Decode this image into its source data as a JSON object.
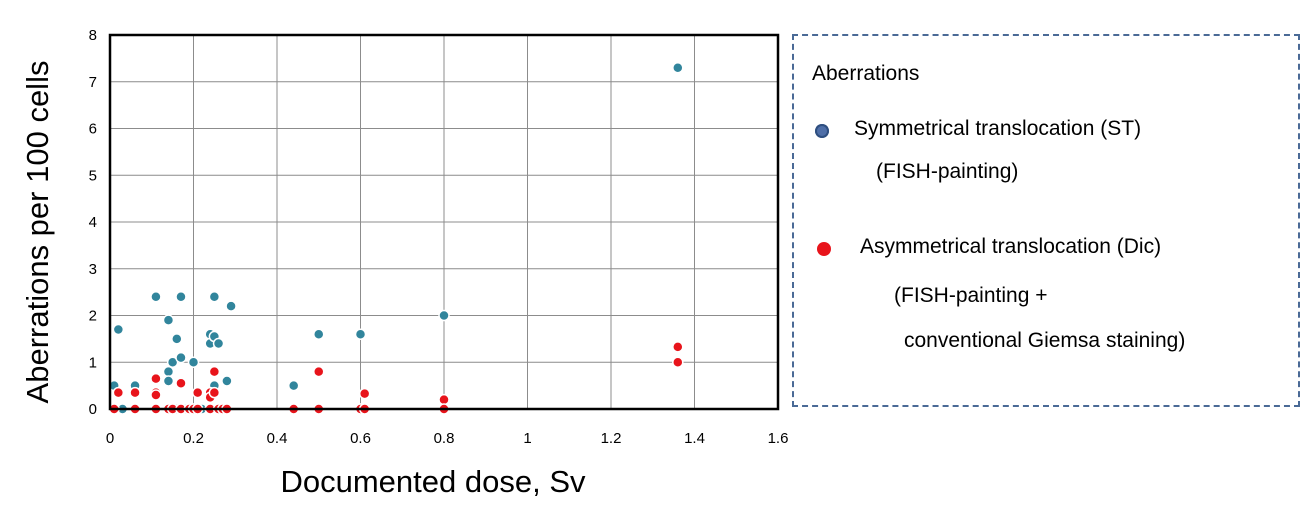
{
  "chart_data": {
    "type": "scatter",
    "xlabel": "Documented dose, Sv",
    "ylabel": "Aberrations per 100 cells",
    "xlim": [
      0,
      1.6
    ],
    "ylim": [
      0,
      8
    ],
    "x_ticks": [
      "0",
      "0.2",
      "0.4",
      "0.6",
      "0.8",
      "1",
      "1.2",
      "1.4",
      "1.6"
    ],
    "y_ticks": [
      "0",
      "1",
      "2",
      "3",
      "4",
      "5",
      "6",
      "7",
      "8"
    ],
    "grid": true,
    "legend_position": "right",
    "series": [
      {
        "name": "Symmetrical translocation (ST)",
        "color": "#31859c",
        "points": [
          [
            0.01,
            0.5
          ],
          [
            0.02,
            1.7
          ],
          [
            0.06,
            0.5
          ],
          [
            0.11,
            2.4
          ],
          [
            0.14,
            1.9
          ],
          [
            0.14,
            0.8
          ],
          [
            0.14,
            0.6
          ],
          [
            0.15,
            1.0
          ],
          [
            0.16,
            1.5
          ],
          [
            0.17,
            2.4
          ],
          [
            0.17,
            1.1
          ],
          [
            0.2,
            1.0
          ],
          [
            0.24,
            1.6
          ],
          [
            0.24,
            1.4
          ],
          [
            0.25,
            2.4
          ],
          [
            0.25,
            1.55
          ],
          [
            0.26,
            1.4
          ],
          [
            0.25,
            0.5
          ],
          [
            0.28,
            0.6
          ],
          [
            0.29,
            2.2
          ],
          [
            0.44,
            0.5
          ],
          [
            0.5,
            1.6
          ],
          [
            0.6,
            1.6
          ],
          [
            0.8,
            2.0
          ],
          [
            1.36,
            7.3
          ],
          [
            0.01,
            0.0
          ],
          [
            0.03,
            0.0
          ],
          [
            0.06,
            0.0
          ],
          [
            0.11,
            0.0
          ],
          [
            0.14,
            0.0
          ],
          [
            0.16,
            0.0
          ],
          [
            0.18,
            0.0
          ],
          [
            0.2,
            0.0
          ],
          [
            0.22,
            0.0
          ],
          [
            0.24,
            0.0
          ],
          [
            0.26,
            0.0
          ],
          [
            0.28,
            0.0
          ],
          [
            0.44,
            0.0
          ],
          [
            0.6,
            0.0
          ],
          [
            0.8,
            0.0
          ]
        ]
      },
      {
        "name": "Asymmetrical translocation (Dic)",
        "color": "#e8141b",
        "points": [
          [
            0.01,
            0.0
          ],
          [
            0.02,
            0.35
          ],
          [
            0.06,
            0.35
          ],
          [
            0.06,
            0.0
          ],
          [
            0.11,
            0.65
          ],
          [
            0.11,
            0.35
          ],
          [
            0.11,
            0.3
          ],
          [
            0.11,
            0.0
          ],
          [
            0.14,
            0.0
          ],
          [
            0.15,
            0.0
          ],
          [
            0.17,
            0.55
          ],
          [
            0.17,
            0.0
          ],
          [
            0.19,
            0.0
          ],
          [
            0.2,
            0.0
          ],
          [
            0.21,
            0.35
          ],
          [
            0.21,
            0.0
          ],
          [
            0.24,
            0.35
          ],
          [
            0.24,
            0.25
          ],
          [
            0.24,
            0.0
          ],
          [
            0.25,
            0.8
          ],
          [
            0.25,
            0.35
          ],
          [
            0.26,
            0.0
          ],
          [
            0.27,
            0.0
          ],
          [
            0.28,
            0.0
          ],
          [
            0.44,
            0.0
          ],
          [
            0.5,
            0.8
          ],
          [
            0.5,
            0.0
          ],
          [
            0.6,
            0.0
          ],
          [
            0.61,
            0.33
          ],
          [
            0.61,
            0.0
          ],
          [
            0.8,
            0.2
          ],
          [
            0.8,
            0.0
          ],
          [
            1.36,
            1.33
          ],
          [
            1.36,
            1.0
          ]
        ]
      }
    ]
  },
  "legend": {
    "title": "Aberrations",
    "items": [
      {
        "label": "Symmetrical translocation (ST)",
        "sub": [
          "(FISH-painting)"
        ],
        "color": "#4f6fa8"
      },
      {
        "label": "Asymmetrical translocation (Dic)",
        "sub": [
          "(FISH-painting +",
          "conventional Giemsa staining)"
        ],
        "color": "#e8141b"
      }
    ]
  }
}
